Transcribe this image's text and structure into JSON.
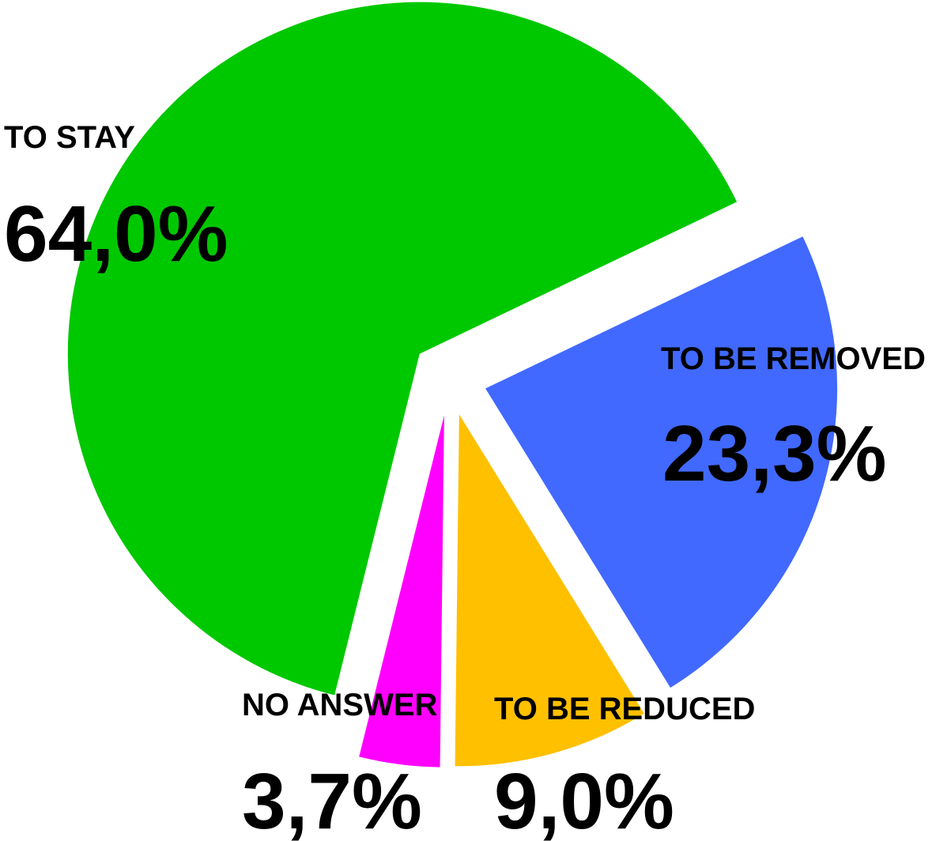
{
  "chart_data": {
    "type": "pie",
    "categories": [
      "TO STAY",
      "TO BE REMOVED",
      "TO BE REDUCED",
      "NO ANSWER"
    ],
    "values": [
      64.0,
      23.3,
      9.0,
      3.7
    ],
    "value_labels": [
      "64,0%",
      "23,3%",
      "9,0%",
      "3,7%"
    ],
    "colors": [
      "#00c800",
      "#4169ff",
      "#ffc000",
      "#ff00ff"
    ]
  }
}
